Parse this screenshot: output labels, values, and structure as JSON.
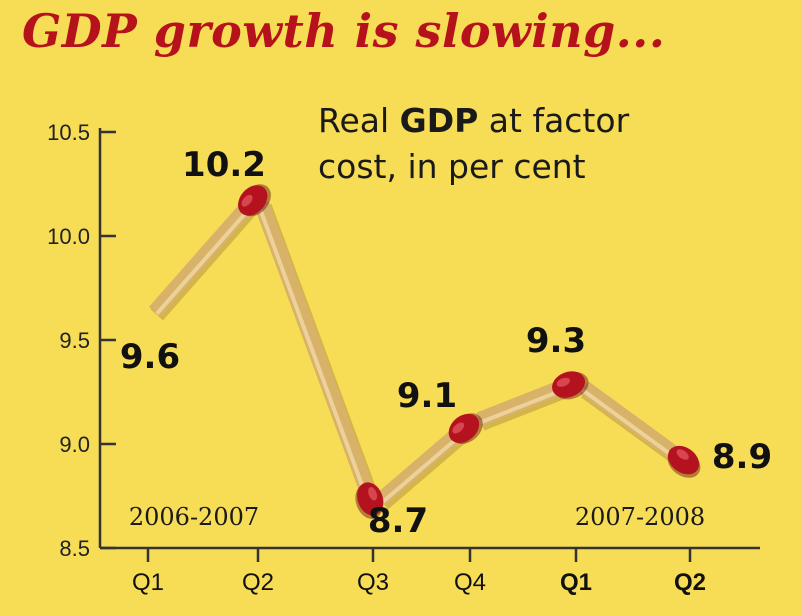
{
  "header": {
    "title": "GDP growth is slowing...",
    "subtitle_pre": "Real ",
    "subtitle_bold": "GDP",
    "subtitle_post": " at factor",
    "subtitle_line2": "cost, in per cent"
  },
  "colors": {
    "background": "#f7dc55",
    "title": "#b5121b",
    "matchstick_body": "#d9b26a",
    "matchstick_head": "#b3121e"
  },
  "chart_data": {
    "type": "line",
    "title": "GDP growth is slowing...",
    "subtitle": "Real GDP at factor cost, in per cent",
    "categories": [
      "Q1",
      "Q2",
      "Q3",
      "Q4",
      "Q1",
      "Q2"
    ],
    "values": [
      9.6,
      10.2,
      8.7,
      9.1,
      9.3,
      8.9
    ],
    "value_labels": [
      "9.6",
      "10.2",
      "8.7",
      "9.1",
      "9.3",
      "8.9"
    ],
    "periods": [
      "2006-2007",
      "2007-2008"
    ],
    "ylim": [
      8.5,
      10.5
    ],
    "yticks": [
      "8.5",
      "9.0",
      "9.5",
      "10.0",
      "10.5"
    ],
    "grid": false,
    "style": "matchstick line segments"
  }
}
